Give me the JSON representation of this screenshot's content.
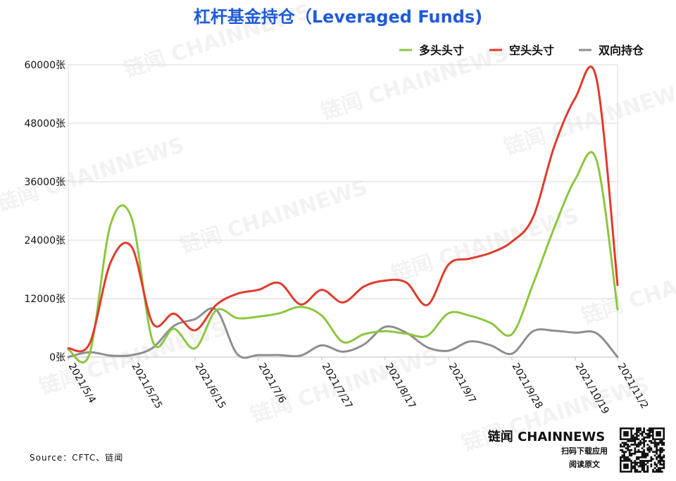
{
  "chart_data": {
    "type": "line",
    "title": "杠杆基金持仓（Leveraged Funds)",
    "ylim": [
      0,
      60000
    ],
    "y_ticks": [
      0,
      12000,
      24000,
      36000,
      48000,
      60000
    ],
    "y_tick_labels": [
      "0张",
      "12000张",
      "24000张",
      "36000张",
      "48000张",
      "60000张"
    ],
    "x_tick_labels": [
      "2021/5/4",
      "2021/5/25",
      "2021/6/15",
      "2021/7/6",
      "2021/7/27",
      "2021/8/17",
      "2021/9/7",
      "2021/9/28",
      "2021/10/19",
      "2021/11/2"
    ],
    "x_tick_index": [
      0,
      3,
      6,
      9,
      12,
      15,
      18,
      21,
      24,
      26
    ],
    "legend_position": "top-right",
    "grid": "horizontal",
    "series": [
      {
        "name": "多头头寸",
        "color": "#8dc63f",
        "values": [
          1600,
          600,
          27200,
          28500,
          3200,
          5800,
          1800,
          9600,
          8000,
          8300,
          9000,
          10300,
          8500,
          3100,
          4700,
          5300,
          4800,
          4400,
          9000,
          8500,
          7000,
          4700,
          15000,
          26500,
          36500,
          40500,
          9800
        ]
      },
      {
        "name": "空头头寸",
        "color": "#e03a2d",
        "values": [
          1800,
          2700,
          19400,
          22600,
          6900,
          8900,
          5500,
          10700,
          13000,
          13800,
          15200,
          10800,
          13800,
          11200,
          14500,
          15700,
          15300,
          10700,
          19000,
          20200,
          21400,
          23700,
          28700,
          43200,
          53200,
          57200,
          14800
        ]
      },
      {
        "name": "双向持仓",
        "color": "#8e8e8e",
        "values": [
          0,
          1000,
          300,
          400,
          1900,
          6400,
          7800,
          9700,
          600,
          400,
          400,
          300,
          2400,
          1100,
          2600,
          6200,
          5000,
          2000,
          1300,
          3200,
          2400,
          700,
          5300,
          5400,
          5000,
          4900,
          0
        ]
      }
    ]
  },
  "footer": {
    "source": "Source：CFTC、链闻",
    "brand_cn": "链闻",
    "brand_en": "CHAINNEWS",
    "brand_line1": "扫码下载应用",
    "brand_line2": "阅读原文"
  },
  "watermark": "链闻 CHAINNEWS",
  "colors": {
    "title": "#1f5bd8",
    "grid": "#d9d9d9"
  }
}
